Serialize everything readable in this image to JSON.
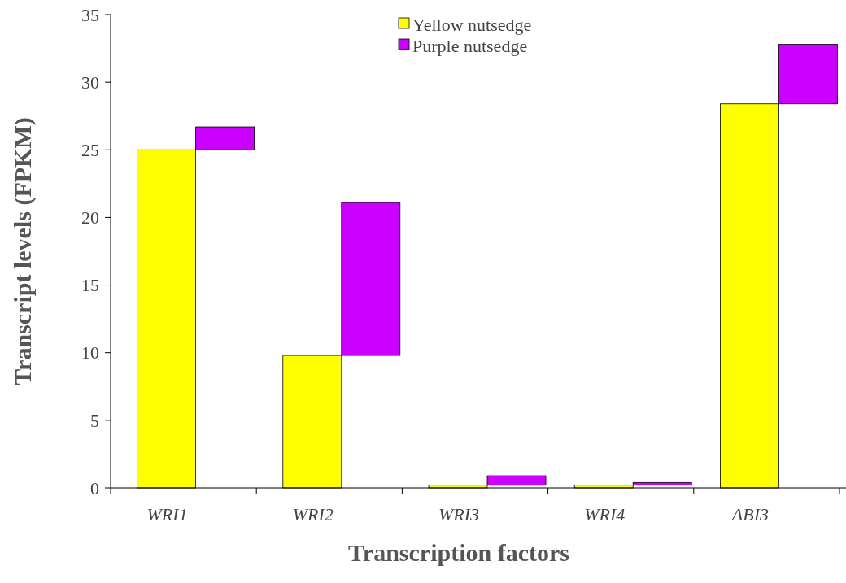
{
  "chart_data": {
    "type": "bar",
    "stacked": true,
    "xlabel": "Transcription factors",
    "ylabel": "Transcript levels (FPKM)",
    "categories": [
      "WRI1",
      "WRI2",
      "WRI3",
      "WRI4",
      "ABI3"
    ],
    "series": [
      {
        "name": "Yellow nutsedge",
        "color": "#ffff00",
        "values": [
          25,
          9.8,
          0.2,
          0.2,
          28.4
        ]
      },
      {
        "name": "Purple nutsedge",
        "color": "#cc00ff",
        "values": [
          1.7,
          11.3,
          0.7,
          0.2,
          4.4
        ]
      }
    ],
    "ylim": [
      0,
      35
    ],
    "yticks": [
      0,
      5,
      10,
      15,
      20,
      25,
      30,
      35
    ],
    "legend": "top"
  }
}
